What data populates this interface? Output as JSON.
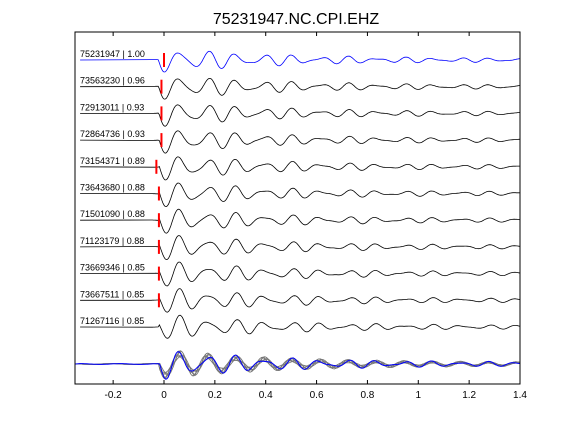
{
  "chart_data": {
    "type": "line",
    "title": "75231947.NC.CPI.EHZ",
    "xlabel": "",
    "ylabel": "",
    "xlim": [
      -0.35,
      1.4
    ],
    "xticks": [
      -0.2,
      0,
      0.2,
      0.4,
      0.6,
      0.8,
      1,
      1.2,
      1.4
    ],
    "xtick_labels": [
      "-0.2",
      "0",
      "0.2",
      "0.4",
      "0.6",
      "0.8",
      "1",
      "1.2",
      "1.4"
    ],
    "grid": false,
    "pick_color": "#ff0000",
    "colors": {
      "reference": "#0000ff",
      "trace": "#000000",
      "stack": "#777777"
    },
    "series": [
      {
        "label": "75231947 | 1.00",
        "event_id": "75231947",
        "correlation": 1.0,
        "pick_time": 0.0,
        "color": "#0000ff"
      },
      {
        "label": "73563230 | 0.96",
        "event_id": "73563230",
        "correlation": 0.96,
        "pick_time": -0.01,
        "color": "#000000"
      },
      {
        "label": "72913011 | 0.93",
        "event_id": "72913011",
        "correlation": 0.93,
        "pick_time": -0.01,
        "color": "#000000"
      },
      {
        "label": "72864736 | 0.93",
        "event_id": "72864736",
        "correlation": 0.93,
        "pick_time": -0.01,
        "color": "#000000"
      },
      {
        "label": "73154371 | 0.89",
        "event_id": "73154371",
        "correlation": 0.89,
        "pick_time": -0.03,
        "color": "#000000"
      },
      {
        "label": "73643680 | 0.88",
        "event_id": "73643680",
        "correlation": 0.88,
        "pick_time": -0.02,
        "color": "#000000"
      },
      {
        "label": "71501090 | 0.88",
        "event_id": "71501090",
        "correlation": 0.88,
        "pick_time": -0.02,
        "color": "#000000"
      },
      {
        "label": "71123179 | 0.88",
        "event_id": "71123179",
        "correlation": 0.88,
        "pick_time": -0.02,
        "color": "#000000"
      },
      {
        "label": "73669346 | 0.85",
        "event_id": "73669346",
        "correlation": 0.85,
        "pick_time": -0.02,
        "color": "#000000"
      },
      {
        "label": "73667511 | 0.85",
        "event_id": "73667511",
        "correlation": 0.85,
        "pick_time": -0.02,
        "color": "#000000"
      },
      {
        "label": "71267116 | 0.85",
        "event_id": "71267116",
        "correlation": 0.85,
        "pick_time": null,
        "color": "#000000"
      }
    ],
    "stack": {
      "overlay_count": 11,
      "reference_color": "#0000ff",
      "overlay_color": "#777777"
    }
  }
}
